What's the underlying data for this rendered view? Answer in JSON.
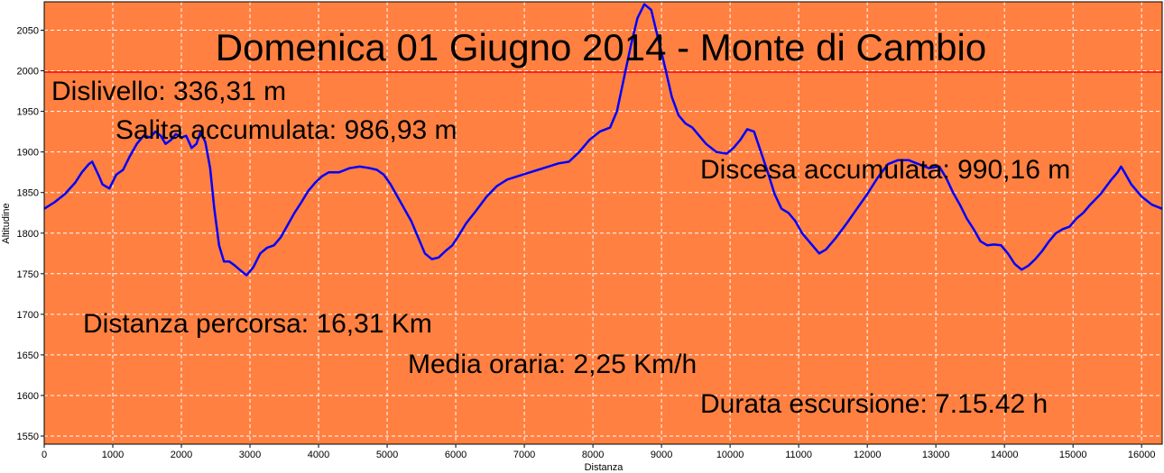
{
  "chart_data": {
    "type": "line",
    "title": "Domenica 01 Giugno 2014 - Monte di Cambio",
    "xlabel": "Distanza",
    "ylabel": "Altitudine",
    "xlim": [
      0,
      16300
    ],
    "ylim": [
      1540,
      2085
    ],
    "x_ticks": [
      0,
      1000,
      2000,
      3000,
      4000,
      5000,
      6000,
      7000,
      8000,
      9000,
      10000,
      11000,
      12000,
      13000,
      14000,
      15000,
      16000
    ],
    "y_ticks": [
      1550,
      1600,
      1650,
      1700,
      1750,
      1800,
      1850,
      1900,
      1950,
      2000,
      2050
    ],
    "grid": true,
    "colors": {
      "background": "#ff8040",
      "line": "#0000ff",
      "grid": "#ffffff",
      "title_rule": "#ff0000"
    },
    "annotations": [
      "Dislivello: 336,31 m",
      "Salita accumulata: 986,93 m",
      "Discesa accumulata: 990,16 m",
      "Distanza percorsa: 16,31 Km",
      "Media oraria: 2,25 Km/h",
      "Durata escursione: 7.15.42 h"
    ],
    "series": [
      {
        "x": [
          0,
          150,
          300,
          450,
          550,
          650,
          700,
          800,
          850,
          950,
          1050,
          1150,
          1250,
          1350,
          1450,
          1550,
          1620,
          1700,
          1770,
          1850,
          1920,
          2000,
          2070,
          2150,
          2220,
          2280,
          2350,
          2420,
          2480,
          2550,
          2620,
          2700,
          2780,
          2850,
          2950,
          3050,
          3150,
          3250,
          3350,
          3450,
          3550,
          3650,
          3750,
          3850,
          3950,
          4050,
          4150,
          4300,
          4450,
          4600,
          4750,
          4850,
          4950,
          5050,
          5150,
          5250,
          5350,
          5450,
          5550,
          5650,
          5750,
          5850,
          5950,
          6050,
          6150,
          6300,
          6450,
          6600,
          6750,
          6900,
          7050,
          7200,
          7350,
          7500,
          7650,
          7800,
          7950,
          8100,
          8250,
          8350,
          8450,
          8550,
          8650,
          8750,
          8850,
          8950,
          9050,
          9150,
          9250,
          9350,
          9450,
          9550,
          9650,
          9800,
          9950,
          10050,
          10150,
          10250,
          10350,
          10450,
          10550,
          10650,
          10750,
          10850,
          10950,
          11050,
          11200,
          11300,
          11400,
          11550,
          11700,
          11850,
          12000,
          12150,
          12300,
          12450,
          12600,
          12750,
          12900,
          13050,
          13150,
          13250,
          13350,
          13450,
          13550,
          13650,
          13750,
          13850,
          13950,
          14050,
          14150,
          14250,
          14350,
          14450,
          14550,
          14650,
          14750,
          14850,
          14950,
          15050,
          15150,
          15250,
          15400,
          15550,
          15650,
          15700,
          15750,
          15850,
          16000,
          16150,
          16300
        ],
        "y": [
          1830,
          1838,
          1848,
          1862,
          1875,
          1885,
          1888,
          1870,
          1860,
          1855,
          1872,
          1878,
          1895,
          1910,
          1920,
          1918,
          1925,
          1920,
          1910,
          1915,
          1922,
          1918,
          1920,
          1905,
          1910,
          1925,
          1912,
          1880,
          1830,
          1785,
          1765,
          1765,
          1760,
          1755,
          1748,
          1758,
          1775,
          1782,
          1785,
          1795,
          1810,
          1825,
          1838,
          1852,
          1862,
          1870,
          1875,
          1875,
          1880,
          1882,
          1880,
          1878,
          1872,
          1860,
          1845,
          1830,
          1815,
          1795,
          1775,
          1768,
          1770,
          1778,
          1785,
          1798,
          1812,
          1828,
          1845,
          1858,
          1866,
          1870,
          1874,
          1878,
          1882,
          1886,
          1888,
          1900,
          1915,
          1925,
          1930,
          1950,
          1990,
          2030,
          2065,
          2082,
          2075,
          2040,
          2005,
          1968,
          1945,
          1935,
          1930,
          1920,
          1910,
          1900,
          1898,
          1905,
          1915,
          1928,
          1925,
          1900,
          1875,
          1848,
          1830,
          1825,
          1815,
          1800,
          1785,
          1775,
          1780,
          1795,
          1812,
          1830,
          1848,
          1868,
          1885,
          1890,
          1890,
          1885,
          1880,
          1882,
          1868,
          1850,
          1835,
          1818,
          1805,
          1790,
          1785,
          1786,
          1785,
          1775,
          1762,
          1755,
          1760,
          1768,
          1778,
          1790,
          1800,
          1805,
          1808,
          1818,
          1825,
          1835,
          1848,
          1865,
          1875,
          1882,
          1875,
          1860,
          1845,
          1835,
          1830
        ]
      }
    ]
  }
}
